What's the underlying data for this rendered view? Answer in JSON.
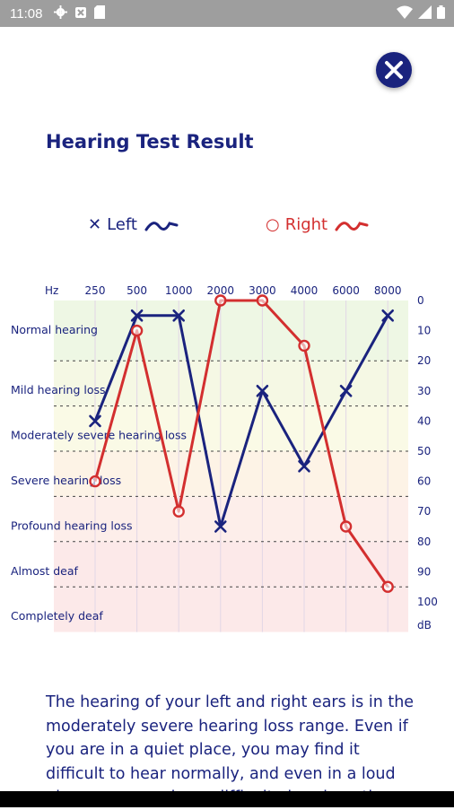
{
  "status_bar": {
    "time": "11:08",
    "icons": [
      "gear-icon",
      "alert-icon",
      "sd-card-icon",
      "wifi-icon",
      "signal-icon",
      "battery-icon"
    ]
  },
  "header": {
    "title": "Hearing Test Result",
    "close_icon": "close-icon"
  },
  "legend": {
    "left_label": "Left",
    "right_label": "Right"
  },
  "colors": {
    "left": "#1a237e",
    "right": "#d32f2f",
    "text": "#1a237e"
  },
  "chart_data": {
    "type": "line",
    "x_unit": "Hz",
    "y_unit": "dB",
    "categories": [
      "250",
      "500",
      "1000",
      "2000",
      "3000",
      "4000",
      "6000",
      "8000"
    ],
    "y_ticks": [
      0,
      10,
      20,
      30,
      40,
      50,
      60,
      70,
      80,
      90,
      100
    ],
    "ylim": [
      0,
      100
    ],
    "y_inverted": true,
    "series": [
      {
        "name": "Left",
        "marker": "x",
        "color": "#1a237e",
        "values": [
          40,
          5,
          5,
          75,
          30,
          55,
          30,
          5
        ]
      },
      {
        "name": "Right",
        "marker": "o",
        "color": "#d32f2f",
        "values": [
          60,
          10,
          70,
          0,
          0,
          15,
          75,
          95
        ]
      }
    ],
    "bands": [
      {
        "label": "Normal hearing",
        "from": 0,
        "to": 20,
        "color": "#eef7e4"
      },
      {
        "label": "Mild hearing loss",
        "from": 20,
        "to": 35,
        "color": "#f5f8e4"
      },
      {
        "label": "Moderately severe hearing loss",
        "from": 35,
        "to": 50,
        "color": "#fafae6"
      },
      {
        "label": "Severe hearing loss",
        "from": 50,
        "to": 65,
        "color": "#fdf3e6"
      },
      {
        "label": "Profound hearing loss",
        "from": 65,
        "to": 80,
        "color": "#fdeeea"
      },
      {
        "label": "Almost deaf",
        "from": 80,
        "to": 95,
        "color": "#fce9e9"
      },
      {
        "label": "Completely deaf",
        "from": 95,
        "to": 110,
        "color": "#fce9e9"
      }
    ],
    "grid": true
  },
  "description": "The hearing of your left and right ears is in the moderately severe hearing loss range. Even if you are in a quiet place, you may find it difficult to hear normally, and even in a loud place, you may have difficulty hearing others."
}
